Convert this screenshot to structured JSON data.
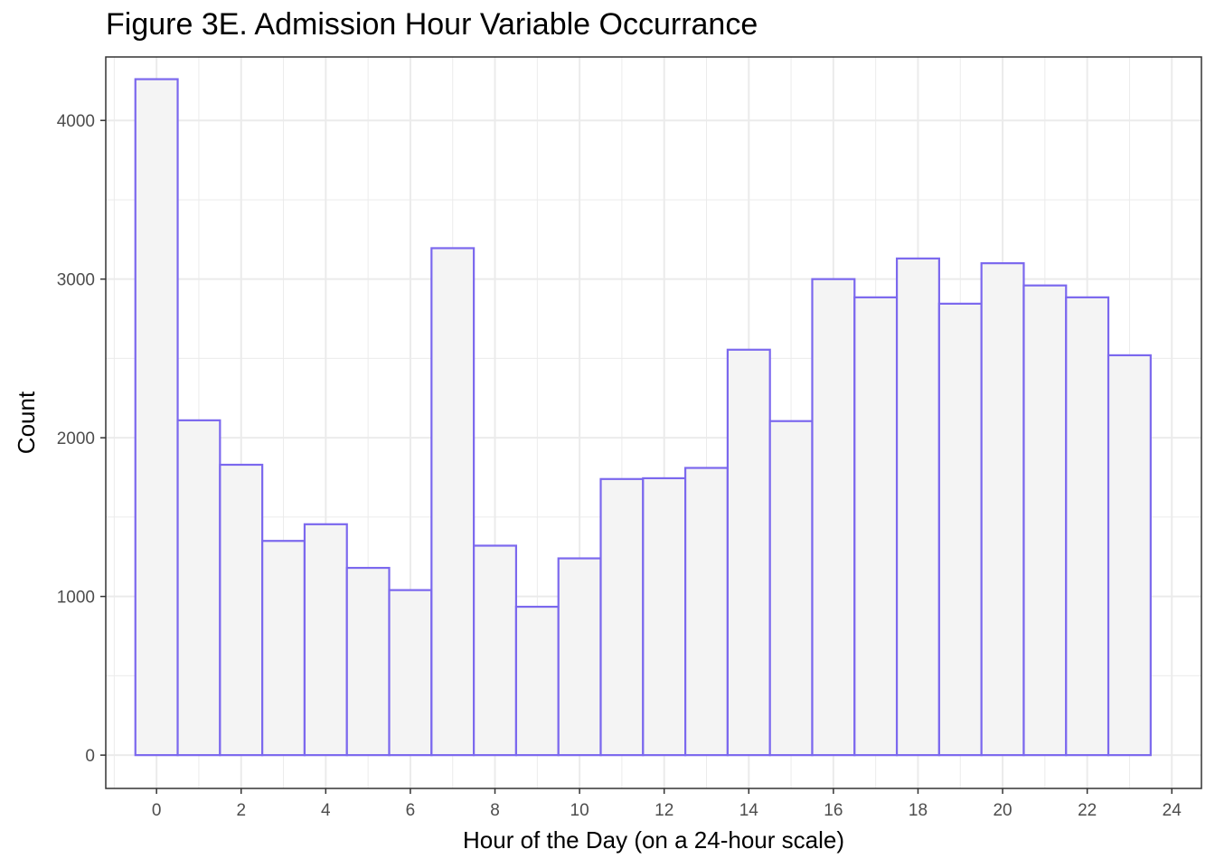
{
  "chart_data": {
    "type": "bar",
    "title": "Figure 3E. Admission Hour Variable Occurrance",
    "xlabel": "Hour of the Day (on a 24-hour scale)",
    "ylabel": "Count",
    "x": [
      0,
      1,
      2,
      3,
      4,
      5,
      6,
      7,
      8,
      9,
      10,
      11,
      12,
      13,
      14,
      15,
      16,
      17,
      18,
      19,
      20,
      21,
      22,
      23
    ],
    "values": [
      4260,
      2110,
      1830,
      1350,
      1455,
      1180,
      1040,
      3195,
      1320,
      935,
      1240,
      1740,
      1745,
      1810,
      2555,
      2105,
      3000,
      2885,
      3130,
      2845,
      3100,
      2960,
      2885,
      2520
    ],
    "xlim": [
      -1.2,
      24.7
    ],
    "ylim": [
      -210,
      4400
    ],
    "x_ticks": [
      "0",
      "2",
      "4",
      "6",
      "8",
      "10",
      "12",
      "14",
      "16",
      "18",
      "20",
      "22",
      "24"
    ],
    "y_ticks": [
      "0",
      "1000",
      "2000",
      "3000",
      "4000"
    ],
    "grid": true,
    "colors": {
      "bar_fill": "#f4f4f4",
      "bar_outline": "#7b68ee",
      "grid": "#ebebeb",
      "panel_border": "#333333"
    }
  }
}
